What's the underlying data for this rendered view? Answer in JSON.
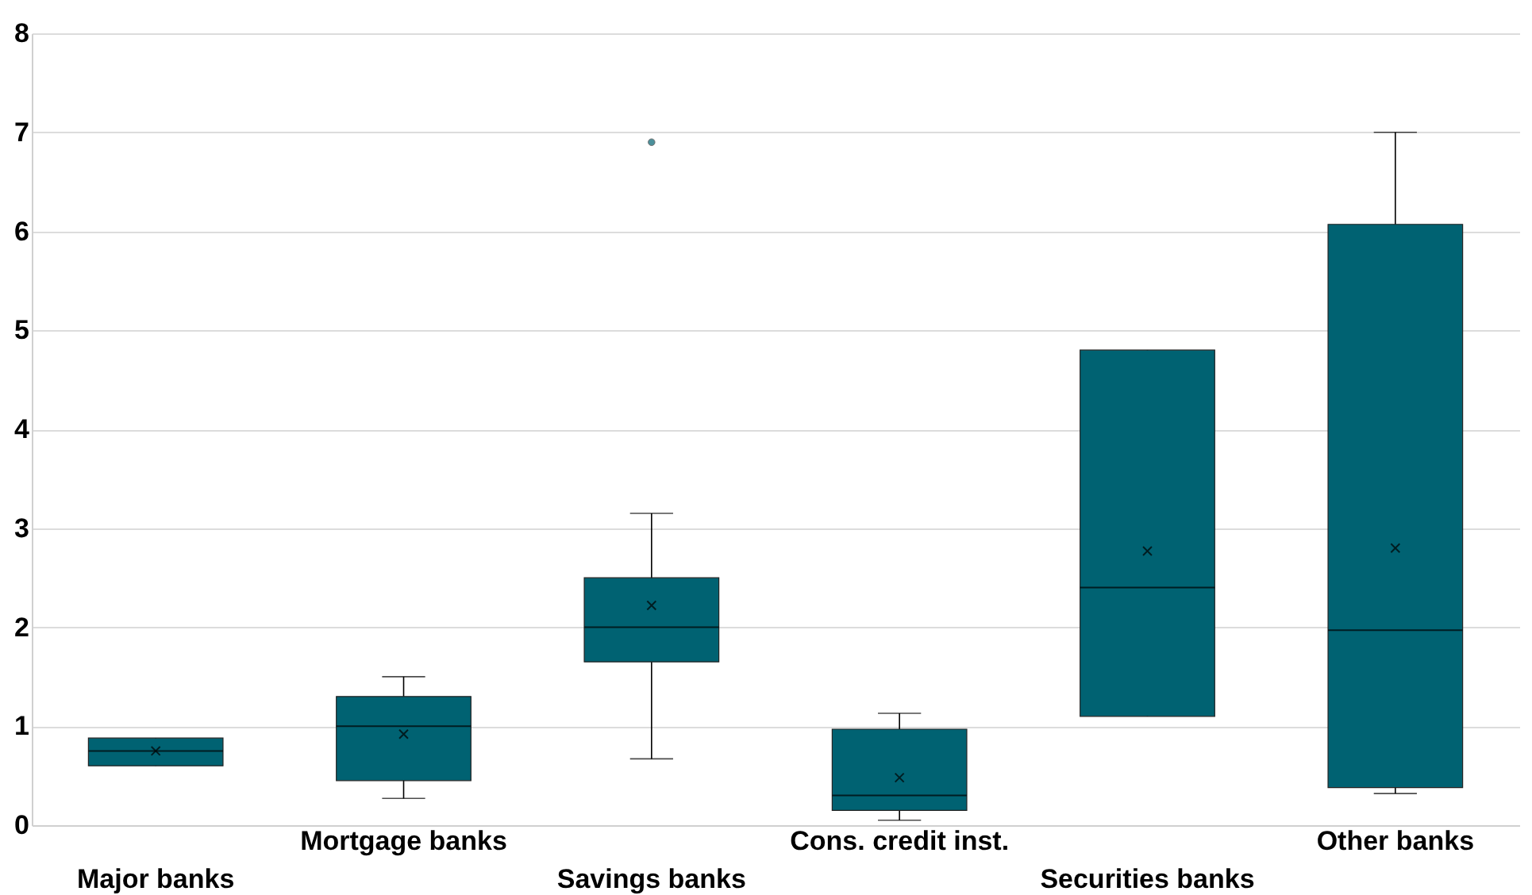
{
  "chart_data": {
    "type": "box",
    "categories": [
      "Major banks",
      "Mortgage banks",
      "Savings banks",
      "Cons. credit inst.",
      "Securities banks",
      "Other banks"
    ],
    "boxes": [
      {
        "low": 0.6,
        "q1": 0.6,
        "median": 0.75,
        "q3": 0.88,
        "high": 0.88,
        "mean": 0.75
      },
      {
        "low": 0.27,
        "q1": 0.45,
        "median": 1.0,
        "q3": 1.3,
        "high": 1.5,
        "mean": 0.92
      },
      {
        "low": 0.67,
        "q1": 1.65,
        "median": 2.0,
        "q3": 2.5,
        "high": 3.15,
        "mean": 2.22,
        "outliers": [
          6.9
        ]
      },
      {
        "low": 0.05,
        "q1": 0.15,
        "median": 0.3,
        "q3": 0.97,
        "high": 1.13,
        "mean": 0.48
      },
      {
        "low": 1.1,
        "q1": 1.1,
        "median": 2.4,
        "q3": 4.8,
        "high": 4.8,
        "mean": 2.77
      },
      {
        "low": 0.32,
        "q1": 0.38,
        "median": 1.97,
        "q3": 6.07,
        "high": 7.0,
        "mean": 2.8
      }
    ],
    "color": "#006272",
    "ylim": [
      0,
      8
    ],
    "yticks": [
      0,
      1,
      2,
      3,
      4,
      5,
      6,
      7,
      8
    ],
    "grid": "y"
  }
}
